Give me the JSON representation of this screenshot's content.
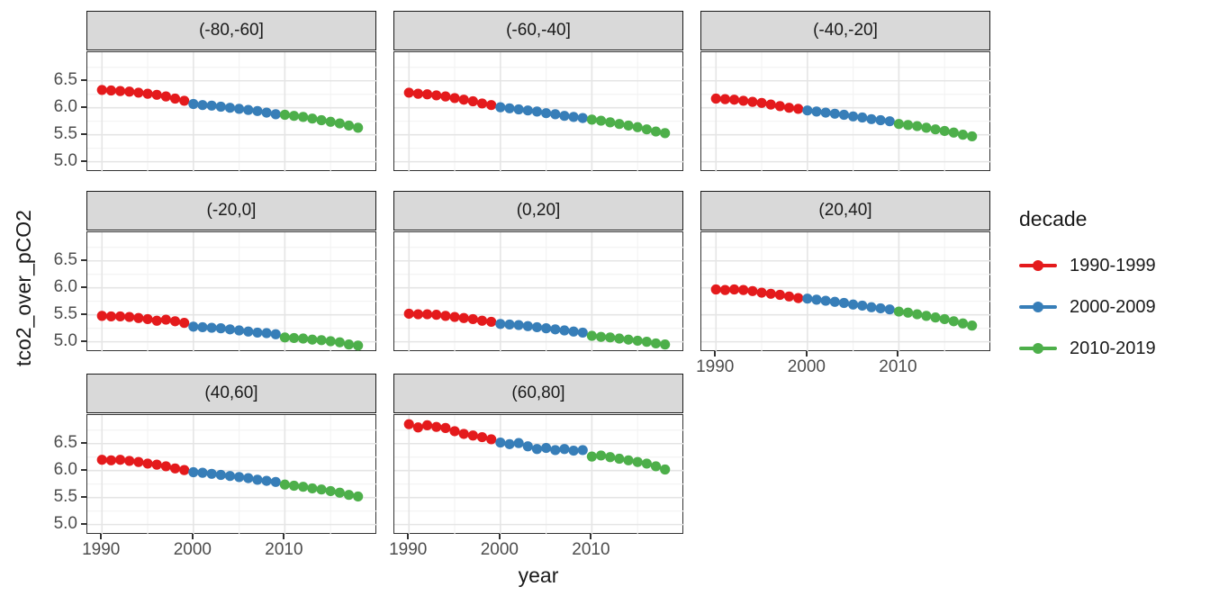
{
  "chart_data": {
    "type": "line",
    "title": "",
    "xlabel": "year",
    "ylabel": "tco2_over_pCO2",
    "legend_title": "decade",
    "legend_position": "right",
    "grid": true,
    "x": [
      1990,
      1991,
      1992,
      1993,
      1994,
      1995,
      1996,
      1997,
      1998,
      1999,
      2000,
      2001,
      2002,
      2003,
      2004,
      2005,
      2006,
      2007,
      2008,
      2009,
      2010,
      2011,
      2012,
      2013,
      2014,
      2015,
      2016,
      2017,
      2018
    ],
    "x_ticks": [
      1990,
      2000,
      2010
    ],
    "y_ticks": [
      5.0,
      5.5,
      6.0,
      6.5
    ],
    "y_minor_ticks": [
      5.25,
      5.75,
      6.25,
      6.75
    ],
    "x_minor_ticks": [
      1995,
      2005,
      2015
    ],
    "xlim": [
      1988.4,
      2020.1
    ],
    "ylim": [
      4.81,
      7.03
    ],
    "series": [
      {
        "name": "1990-1999",
        "color": "#E41A1C",
        "start_year": 1990,
        "end_year": 1999
      },
      {
        "name": "2000-2009",
        "color": "#377EB8",
        "start_year": 2000,
        "end_year": 2009
      },
      {
        "name": "2010-2019",
        "color": "#4DAF4A",
        "start_year": 2010,
        "end_year": 2019
      }
    ],
    "facets": [
      {
        "label": "(-80,-60]",
        "values": [
          6.33,
          6.32,
          6.31,
          6.3,
          6.28,
          6.26,
          6.24,
          6.21,
          6.17,
          6.13,
          6.07,
          6.05,
          6.04,
          6.02,
          6.0,
          5.98,
          5.96,
          5.94,
          5.91,
          5.88,
          5.87,
          5.85,
          5.83,
          5.8,
          5.77,
          5.74,
          5.71,
          5.67,
          5.63
        ]
      },
      {
        "label": "(-60,-40]",
        "values": [
          6.28,
          6.26,
          6.25,
          6.23,
          6.21,
          6.18,
          6.15,
          6.12,
          6.08,
          6.05,
          6.01,
          5.99,
          5.97,
          5.95,
          5.93,
          5.9,
          5.88,
          5.85,
          5.83,
          5.81,
          5.78,
          5.76,
          5.73,
          5.7,
          5.67,
          5.64,
          5.6,
          5.56,
          5.53
        ]
      },
      {
        "label": "(-40,-20]",
        "values": [
          6.17,
          6.16,
          6.15,
          6.13,
          6.11,
          6.09,
          6.06,
          6.03,
          6.0,
          5.98,
          5.95,
          5.93,
          5.91,
          5.89,
          5.87,
          5.84,
          5.82,
          5.79,
          5.77,
          5.75,
          5.7,
          5.68,
          5.66,
          5.63,
          5.6,
          5.57,
          5.54,
          5.5,
          5.47
        ]
      },
      {
        "label": "(-20,0]",
        "values": [
          5.48,
          5.47,
          5.47,
          5.46,
          5.44,
          5.42,
          5.39,
          5.41,
          5.38,
          5.35,
          5.28,
          5.27,
          5.26,
          5.25,
          5.23,
          5.21,
          5.19,
          5.17,
          5.16,
          5.14,
          5.08,
          5.07,
          5.06,
          5.04,
          5.03,
          5.01,
          4.99,
          4.95,
          4.93
        ]
      },
      {
        "label": "(0,20]",
        "values": [
          5.52,
          5.51,
          5.51,
          5.5,
          5.48,
          5.46,
          5.44,
          5.42,
          5.39,
          5.37,
          5.33,
          5.32,
          5.31,
          5.29,
          5.27,
          5.25,
          5.23,
          5.21,
          5.19,
          5.17,
          5.11,
          5.09,
          5.08,
          5.06,
          5.04,
          5.02,
          5.0,
          4.97,
          4.95
        ]
      },
      {
        "label": "(20,40]",
        "values": [
          5.97,
          5.96,
          5.97,
          5.96,
          5.94,
          5.91,
          5.89,
          5.87,
          5.84,
          5.81,
          5.8,
          5.78,
          5.76,
          5.74,
          5.72,
          5.69,
          5.67,
          5.64,
          5.62,
          5.6,
          5.56,
          5.54,
          5.51,
          5.48,
          5.45,
          5.42,
          5.38,
          5.34,
          5.3
        ]
      },
      {
        "label": "(40,60]",
        "values": [
          6.2,
          6.19,
          6.2,
          6.18,
          6.16,
          6.13,
          6.11,
          6.08,
          6.04,
          6.01,
          5.97,
          5.96,
          5.94,
          5.92,
          5.9,
          5.88,
          5.86,
          5.83,
          5.81,
          5.79,
          5.74,
          5.72,
          5.7,
          5.67,
          5.65,
          5.62,
          5.59,
          5.55,
          5.52
        ]
      },
      {
        "label": "(60,80]",
        "values": [
          6.86,
          6.8,
          6.84,
          6.81,
          6.79,
          6.73,
          6.68,
          6.65,
          6.62,
          6.58,
          6.52,
          6.49,
          6.51,
          6.45,
          6.4,
          6.42,
          6.38,
          6.4,
          6.37,
          6.38,
          6.26,
          6.28,
          6.25,
          6.22,
          6.19,
          6.16,
          6.13,
          6.08,
          6.02
        ]
      }
    ],
    "style": {
      "strip_fill": "#d9d9d9",
      "panel_border": "#333333",
      "grid_major": "#e5e5e5",
      "grid_minor": "#f3f3f3",
      "tick_label_color": "#4d4d4d"
    }
  }
}
